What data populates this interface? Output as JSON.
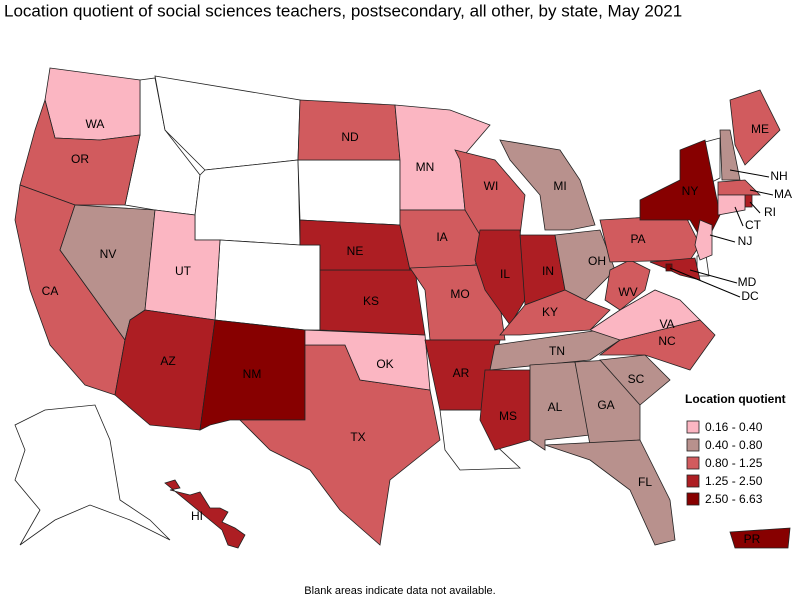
{
  "title": "Location quotient of social sciences teachers, postsecondary, all other, by state, May 2021",
  "legend": {
    "title": "Location quotient",
    "items": [
      {
        "label": "0.16 - 0.40",
        "color": "#fbb6c2"
      },
      {
        "label": "0.40 - 0.80",
        "color": "#b8918d"
      },
      {
        "label": "0.80 - 1.25",
        "color": "#d15b5e"
      },
      {
        "label": "1.25 - 2.50",
        "color": "#ad1e23"
      },
      {
        "label": "2.50 - 6.63",
        "color": "#870000"
      }
    ]
  },
  "states": [
    {
      "label": "WA",
      "color": "#fbb6c2"
    },
    {
      "label": "OR",
      "color": "#d15b5e"
    },
    {
      "label": "CA",
      "color": "#d15b5e"
    },
    {
      "label": "NV",
      "color": "#b8918d"
    },
    {
      "label": "UT",
      "color": "#fbb6c2"
    },
    {
      "label": "AZ",
      "color": "#ad1e23"
    },
    {
      "label": "NM",
      "color": "#870000"
    },
    {
      "label": "TX",
      "color": "#d15b5e"
    },
    {
      "label": "OK",
      "color": "#fbb6c2"
    },
    {
      "label": "KS",
      "color": "#ad1e23"
    },
    {
      "label": "NE",
      "color": "#ad1e23"
    },
    {
      "label": "ND",
      "color": "#d15b5e"
    },
    {
      "label": "MN",
      "color": "#fbb6c2"
    },
    {
      "label": "IA",
      "color": "#d15b5e"
    },
    {
      "label": "MO",
      "color": "#d15b5e"
    },
    {
      "label": "AR",
      "color": "#ad1e23"
    },
    {
      "label": "WI",
      "color": "#d15b5e"
    },
    {
      "label": "IL",
      "color": "#ad1e23"
    },
    {
      "label": "MI",
      "color": "#b8918d"
    },
    {
      "label": "IN",
      "color": "#ad1e23"
    },
    {
      "label": "OH",
      "color": "#b8918d"
    },
    {
      "label": "KY",
      "color": "#d15b5e"
    },
    {
      "label": "TN",
      "color": "#b8918d"
    },
    {
      "label": "MS",
      "color": "#ad1e23"
    },
    {
      "label": "AL",
      "color": "#b8918d"
    },
    {
      "label": "GA",
      "color": "#b8918d"
    },
    {
      "label": "FL",
      "color": "#b8918d"
    },
    {
      "label": "SC",
      "color": "#b8918d"
    },
    {
      "label": "NC",
      "color": "#d15b5e"
    },
    {
      "label": "VA",
      "color": "#fbb6c2"
    },
    {
      "label": "WV",
      "color": "#d15b5e"
    },
    {
      "label": "PA",
      "color": "#d15b5e"
    },
    {
      "label": "NY",
      "color": "#870000"
    },
    {
      "label": "ME",
      "color": "#d15b5e"
    },
    {
      "label": "NH",
      "color": "#b8918d"
    },
    {
      "label": "MA",
      "color": "#d15b5e"
    },
    {
      "label": "RI",
      "color": "#ad1e23"
    },
    {
      "label": "CT",
      "color": "#fbb6c2"
    },
    {
      "label": "NJ",
      "color": "#fbb6c2"
    },
    {
      "label": "MD",
      "color": "#ad1e23"
    },
    {
      "label": "DC",
      "color": "#870000"
    },
    {
      "label": "HI",
      "color": "#ad1e23"
    },
    {
      "label": "PR",
      "color": "#870000"
    }
  ],
  "footnote": "Blank areas indicate data not available."
}
